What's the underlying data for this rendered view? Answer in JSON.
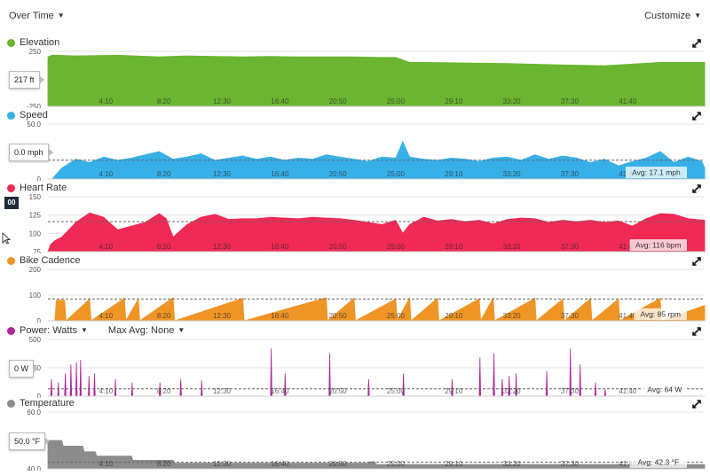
{
  "header": {
    "over_time": "Over Time",
    "customize": "Customize"
  },
  "x_ticks": [
    "4:10",
    "8:20",
    "12:30",
    "16:40",
    "20:50",
    "25:00",
    "29:10",
    "33:20",
    "37:30",
    "41:40"
  ],
  "x_tick_minutes": [
    4.1667,
    8.3333,
    12.5,
    16.6667,
    20.8333,
    25.0,
    29.1667,
    33.3333,
    37.5,
    41.6667
  ],
  "x_range_minutes": [
    0,
    47.2
  ],
  "icons": {
    "caret": "caret-down-icon",
    "expand": "expand-icon",
    "mouse": "mouse-pointer-icon"
  },
  "hr_badge_text": "00",
  "power_controls": {
    "label": "Power: Watts",
    "max_avg": "Max Avg: None"
  },
  "chart_data": [
    {
      "type": "area",
      "key": "elevation",
      "title": "Elevation",
      "color": "#6ab630",
      "y_ticks": [
        "250",
        "-250"
      ],
      "ylim": [
        -250,
        250
      ],
      "cursor_value": "217 ft",
      "avg_label": "",
      "x": [
        0,
        0.3,
        2,
        5,
        8,
        10,
        12,
        14,
        16,
        18,
        20,
        22,
        24,
        25,
        26,
        27,
        30,
        33,
        36,
        40,
        42,
        44,
        47.2
      ],
      "y": [
        200,
        217,
        210,
        215,
        200,
        210,
        205,
        200,
        205,
        200,
        200,
        200,
        195,
        195,
        150,
        150,
        145,
        140,
        130,
        120,
        135,
        150,
        150
      ]
    },
    {
      "type": "area",
      "key": "speed",
      "title": "Speed",
      "color": "#37b0e8",
      "y_ticks": [
        "50.0",
        "0"
      ],
      "ylim": [
        0,
        50
      ],
      "cursor_value": "0.0 mph",
      "avg_label": "Avg: 17.1 mph",
      "avg_value": 17.1,
      "x": [
        0,
        0.3,
        1,
        2,
        3,
        4,
        5,
        6,
        7,
        8,
        9,
        10,
        11,
        12,
        13,
        14,
        15,
        16,
        17,
        18,
        19,
        20,
        21,
        22,
        23,
        24,
        25,
        25.5,
        26,
        27,
        28,
        29,
        30,
        31,
        32,
        33,
        34,
        35,
        36,
        37,
        38,
        39,
        40,
        41,
        42,
        43,
        44,
        45,
        46,
        47,
        47.2
      ],
      "y": [
        0,
        0,
        10,
        18,
        15,
        20,
        17,
        19,
        22,
        25,
        18,
        20,
        23,
        17,
        19,
        21,
        18,
        20,
        17,
        19,
        18,
        22,
        20,
        18,
        16,
        20,
        19,
        34,
        20,
        18,
        17,
        19,
        18,
        16,
        19,
        20,
        17,
        22,
        18,
        21,
        19,
        15,
        18,
        12,
        16,
        19,
        25,
        15,
        20,
        16,
        10
      ]
    },
    {
      "type": "area",
      "key": "heart_rate",
      "title": "Heart Rate",
      "color": "#f02a55",
      "y_ticks": [
        "150",
        "125",
        "100",
        "75"
      ],
      "ylim": [
        75,
        150
      ],
      "cursor_value": "",
      "avg_label": "Avg: 116 bpm",
      "avg_value": 116,
      "x": [
        0,
        0.2,
        0.5,
        1,
        2,
        3,
        4,
        5,
        6,
        7,
        8,
        8.5,
        9,
        10,
        11,
        12,
        13,
        14,
        15,
        16,
        17,
        18,
        19,
        20,
        21,
        22,
        23,
        24,
        25,
        25.5,
        26,
        27,
        28,
        29,
        30,
        31,
        32,
        33,
        34,
        35,
        36,
        37,
        38,
        39,
        40,
        41,
        42,
        43,
        44,
        45,
        46,
        47.2
      ],
      "y": [
        75,
        85,
        90,
        95,
        115,
        128,
        122,
        105,
        110,
        115,
        127,
        120,
        95,
        112,
        122,
        126,
        119,
        120,
        120,
        122,
        121,
        120,
        122,
        121,
        120,
        118,
        115,
        112,
        118,
        100,
        112,
        122,
        117,
        119,
        116,
        118,
        113,
        119,
        121,
        120,
        115,
        118,
        116,
        118,
        115,
        117,
        110,
        120,
        127,
        126,
        120,
        118
      ]
    },
    {
      "type": "area",
      "key": "bike_cadence",
      "title": "Bike Cadence",
      "color": "#ef9526",
      "y_ticks": [
        "200",
        "100",
        "0"
      ],
      "ylim": [
        0,
        200
      ],
      "cursor_value": "",
      "avg_label": "Avg: 85 rpm",
      "avg_value": 85,
      "x": [
        0,
        0.5,
        0.6,
        1.2,
        1.3,
        3,
        3.1,
        5.5,
        5.6,
        6.5,
        6.6,
        9,
        9.1,
        14,
        14.1,
        20,
        20.1,
        22,
        22.1,
        25,
        25.1,
        26,
        26.1,
        28,
        28.1,
        31,
        31.1,
        32,
        32.1,
        35,
        35.1,
        37,
        37.1,
        39,
        39.1,
        41,
        41.1,
        44,
        44.1,
        47.2
      ],
      "y": [
        0,
        0,
        80,
        80,
        0,
        85,
        0,
        88,
        0,
        85,
        0,
        90,
        0,
        88,
        0,
        90,
        0,
        88,
        0,
        85,
        0,
        90,
        0,
        88,
        0,
        86,
        0,
        90,
        0,
        88,
        0,
        85,
        0,
        87,
        0,
        85,
        0,
        88,
        0,
        60
      ]
    },
    {
      "type": "area",
      "key": "power",
      "title": "Power: Watts",
      "color": "#b2259a",
      "y_ticks": [
        "500",
        "250",
        "0"
      ],
      "ylim": [
        0,
        500
      ],
      "cursor_value": "0 W",
      "avg_label": "Avg: 64 W",
      "avg_value": 64,
      "x": [
        0,
        0.2,
        0.25,
        0.3,
        0.7,
        0.75,
        0.8,
        1.2,
        1.25,
        1.3,
        1.6,
        1.65,
        1.7,
        2,
        2.05,
        2.1,
        2.3,
        2.35,
        2.4,
        2.9,
        2.95,
        3,
        3.3,
        3.35,
        3.4,
        4.8,
        4.85,
        4.9,
        6,
        6.05,
        6.1,
        8,
        8.05,
        8.1,
        9.5,
        9.55,
        9.6,
        11,
        11.05,
        11.1,
        16,
        16.05,
        16.1,
        17,
        17.05,
        17.1,
        20.2,
        20.25,
        20.3,
        23,
        23.05,
        23.1,
        25.5,
        25.55,
        25.6,
        29,
        29.05,
        29.1,
        31,
        31.05,
        31.1,
        32,
        32.05,
        32.1,
        32.6,
        32.65,
        32.7,
        33.1,
        33.15,
        33.2,
        33.6,
        33.65,
        33.7,
        35.8,
        35.85,
        35.9,
        37.5,
        37.55,
        37.6,
        38.2,
        38.25,
        38.3,
        39.3,
        39.35,
        39.4,
        40,
        40.05,
        40.1,
        47.2
      ],
      "y": [
        0,
        0,
        150,
        0,
        0,
        120,
        0,
        0,
        200,
        0,
        0,
        280,
        0,
        0,
        300,
        0,
        0,
        320,
        0,
        0,
        180,
        0,
        0,
        200,
        0,
        0,
        150,
        0,
        0,
        120,
        0,
        0,
        120,
        0,
        0,
        150,
        0,
        0,
        140,
        0,
        0,
        420,
        0,
        0,
        200,
        0,
        0,
        380,
        0,
        0,
        150,
        0,
        0,
        200,
        0,
        0,
        150,
        0,
        0,
        340,
        0,
        0,
        380,
        0,
        0,
        150,
        0,
        0,
        180,
        0,
        0,
        200,
        0,
        0,
        220,
        0,
        0,
        420,
        0,
        0,
        280,
        0,
        0,
        120,
        0,
        0,
        60,
        0,
        0
      ]
    },
    {
      "type": "area",
      "key": "temperature",
      "title": "Temperature",
      "color": "#8c8c8c",
      "y_ticks": [
        "60.0",
        "40.0"
      ],
      "ylim": [
        40,
        60
      ],
      "cursor_value": "50.0 °F",
      "avg_label": "Avg: 42.3 °F",
      "avg_value": 42.3,
      "x": [
        0,
        1,
        1.1,
        2.5,
        2.6,
        3.4,
        3.5,
        6,
        6.1,
        9,
        9.1,
        23,
        23.1,
        23.5,
        23.6,
        47.2
      ],
      "y": [
        50,
        50,
        48,
        48,
        46,
        46,
        44.5,
        44.5,
        43,
        43,
        42,
        42,
        42.5,
        42.5,
        41.5,
        41.5
      ]
    }
  ]
}
